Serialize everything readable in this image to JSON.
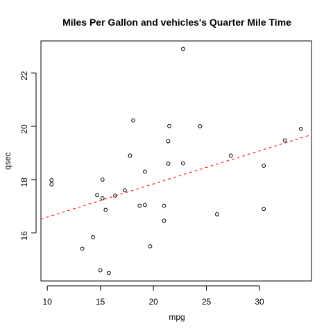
{
  "chart_data": {
    "type": "scatter",
    "title": "Miles Per Gallon and vehicles's Quarter Mile Time",
    "xlabel": "mpg",
    "ylabel": "qsec",
    "xlim": [
      9.4,
      34.9
    ],
    "ylim": [
      14.2,
      23.2
    ],
    "x_ticks": [
      10,
      15,
      20,
      25,
      30
    ],
    "y_ticks": [
      16,
      18,
      20,
      22
    ],
    "grid": false,
    "legend": "none",
    "colors": {
      "points": "#000000",
      "fit_line": "#ff0000",
      "axes": "#000000"
    },
    "points": [
      {
        "x": 21.0,
        "y": 16.46
      },
      {
        "x": 21.0,
        "y": 17.02
      },
      {
        "x": 22.8,
        "y": 18.61
      },
      {
        "x": 21.4,
        "y": 19.44
      },
      {
        "x": 18.7,
        "y": 17.02
      },
      {
        "x": 18.1,
        "y": 20.22
      },
      {
        "x": 14.3,
        "y": 15.84
      },
      {
        "x": 24.4,
        "y": 20.0
      },
      {
        "x": 22.8,
        "y": 22.9
      },
      {
        "x": 19.2,
        "y": 18.3
      },
      {
        "x": 17.8,
        "y": 18.9
      },
      {
        "x": 16.4,
        "y": 17.4
      },
      {
        "x": 17.3,
        "y": 17.6
      },
      {
        "x": 15.2,
        "y": 18.0
      },
      {
        "x": 10.4,
        "y": 17.98
      },
      {
        "x": 10.4,
        "y": 17.82
      },
      {
        "x": 14.7,
        "y": 17.42
      },
      {
        "x": 32.4,
        "y": 19.47
      },
      {
        "x": 30.4,
        "y": 18.52
      },
      {
        "x": 33.9,
        "y": 19.9
      },
      {
        "x": 21.5,
        "y": 20.01
      },
      {
        "x": 15.5,
        "y": 16.87
      },
      {
        "x": 15.2,
        "y": 17.3
      },
      {
        "x": 13.3,
        "y": 15.41
      },
      {
        "x": 19.2,
        "y": 17.05
      },
      {
        "x": 27.3,
        "y": 18.9
      },
      {
        "x": 26.0,
        "y": 16.7
      },
      {
        "x": 30.4,
        "y": 16.9
      },
      {
        "x": 15.8,
        "y": 14.5
      },
      {
        "x": 19.7,
        "y": 15.5
      },
      {
        "x": 15.0,
        "y": 14.6
      },
      {
        "x": 21.4,
        "y": 18.6
      }
    ],
    "fit_line": {
      "style": "dashed",
      "intercept": 15.3548,
      "slope": 0.1241
    }
  }
}
